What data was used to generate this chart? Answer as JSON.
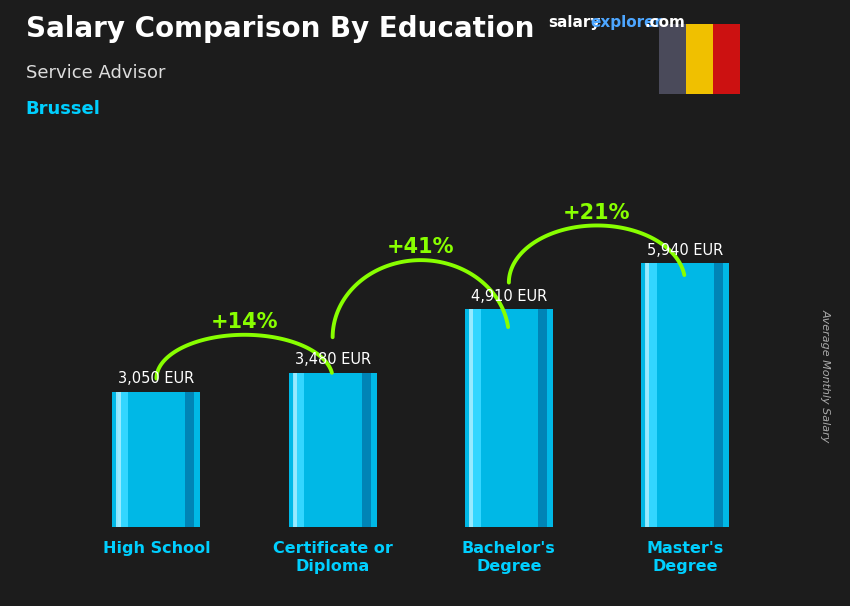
{
  "title": "Salary Comparison By Education",
  "subtitle": "Service Advisor",
  "location": "Brussel",
  "ylabel": "Average Monthly Salary",
  "categories": [
    "High School",
    "Certificate or\nDiploma",
    "Bachelor's\nDegree",
    "Master's\nDegree"
  ],
  "values": [
    3050,
    3480,
    4910,
    5940
  ],
  "value_labels": [
    "3,050 EUR",
    "3,480 EUR",
    "4,910 EUR",
    "5,940 EUR"
  ],
  "pct_labels": [
    "+14%",
    "+41%",
    "+21%"
  ],
  "bar_color_main": "#00b8e6",
  "bar_color_light": "#33d6ff",
  "bar_color_dark": "#0077aa",
  "bg_color": "#1c1c1c",
  "title_color": "#ffffff",
  "subtitle_color": "#dddddd",
  "location_color": "#00cfff",
  "value_color": "#ffffff",
  "pct_color": "#88ff00",
  "arrow_color": "#88ff00",
  "ylim": [
    0,
    7500
  ],
  "bar_width": 0.5,
  "flag_dark": "#4a4a5a",
  "flag_yellow": "#f0c000",
  "flag_red": "#cc1111",
  "xlabel_color": "#00cfff",
  "site_salary_color": "#ffffff",
  "site_explorer_color": "#4da6ff",
  "site_com_color": "#ffffff",
  "value_label_offsets": [
    0,
    0,
    0,
    0
  ],
  "pct_peak_offsets": [
    850,
    1100,
    850
  ]
}
